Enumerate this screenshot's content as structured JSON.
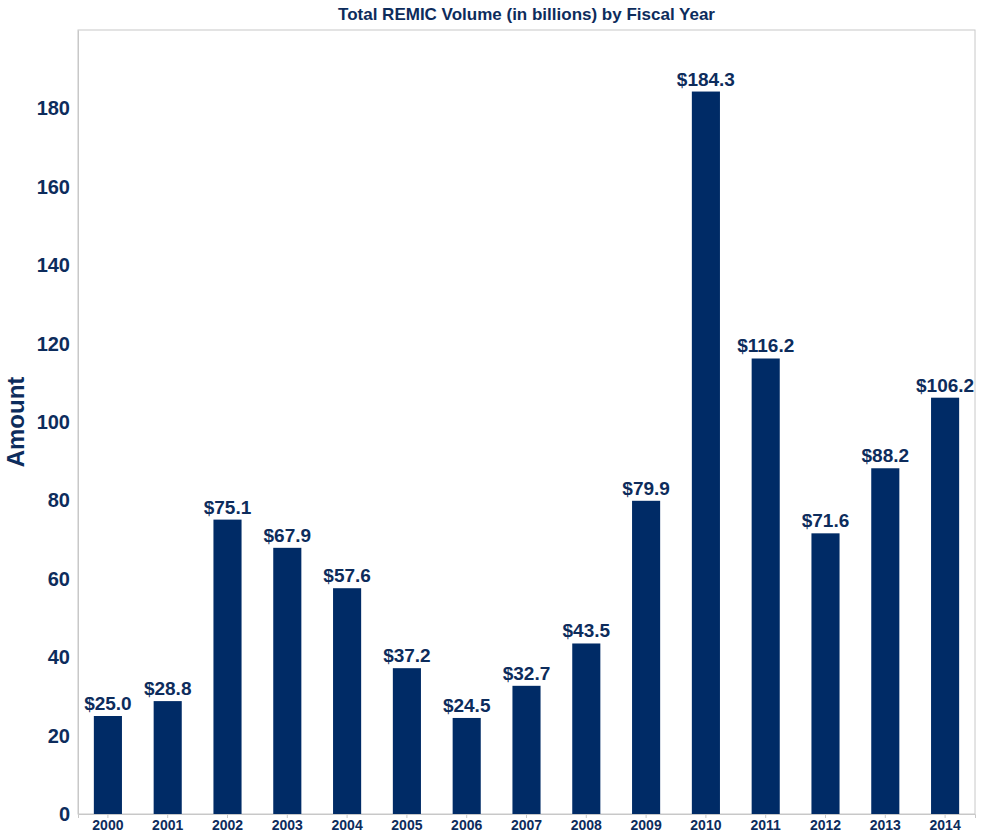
{
  "chart_data": {
    "type": "bar",
    "title": "Total REMIC Volume (in billions) by Fiscal Year",
    "y_label": "Amount",
    "categories": [
      "2000",
      "2001",
      "2002",
      "2003",
      "2004",
      "2005",
      "2006",
      "2007",
      "2008",
      "2009",
      "2010",
      "2011",
      "2012",
      "2013",
      "2014"
    ],
    "values": [
      25.0,
      28.8,
      75.1,
      67.9,
      57.6,
      37.2,
      24.5,
      32.7,
      43.5,
      79.9,
      184.3,
      116.2,
      71.6,
      88.2,
      106.2
    ],
    "value_labels": [
      "$25.0",
      "$28.8",
      "$75.1",
      "$67.9",
      "$57.6",
      "$37.2",
      "$24.5",
      "$32.7",
      "$43.5",
      "$79.9",
      "$184.3",
      "$116.2",
      "$71.6",
      "$88.2",
      "$106.2"
    ],
    "color": "#002b66",
    "ylim": [
      0,
      200
    ],
    "yticks": [
      0,
      20,
      40,
      60,
      80,
      100,
      120,
      140,
      160,
      180
    ],
    "grid": false,
    "data_labels": true
  }
}
